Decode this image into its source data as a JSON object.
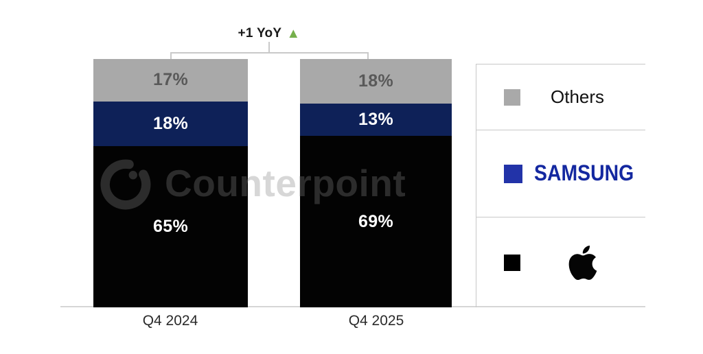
{
  "watermark": {
    "text": "Counterpoint",
    "color": "rgba(130,130,130,0.32)"
  },
  "annotation": {
    "text": "+1 YoY",
    "marker": "▲",
    "marker_color": "#76b04c"
  },
  "chart_data": {
    "type": "bar",
    "stacking": "percent",
    "title": "",
    "categories": [
      "Q4 2024",
      "Q4 2025"
    ],
    "series": [
      {
        "name": "Others",
        "color": "#a9a9a9",
        "label_color": "#595959",
        "values": [
          17,
          18
        ]
      },
      {
        "name": "Samsung",
        "color": "#0e2158",
        "label_color": "#ffffff",
        "values": [
          18,
          13
        ]
      },
      {
        "name": "Apple",
        "color": "#030303",
        "label_color": "#ffffff",
        "values": [
          65,
          69
        ]
      }
    ],
    "value_label_suffix": "%",
    "ylim": [
      0,
      100
    ],
    "grid": false,
    "legend_position": "right"
  },
  "legend": {
    "items": [
      {
        "label": "Others",
        "swatch_color": "#a9a9a9",
        "label_color": "#111111"
      },
      {
        "label": "SAMSUNG",
        "swatch_color": "#2233a8",
        "label_color": "#1428a0"
      },
      {
        "icon": "apple-logo-icon",
        "swatch_color": "#000000"
      }
    ]
  }
}
